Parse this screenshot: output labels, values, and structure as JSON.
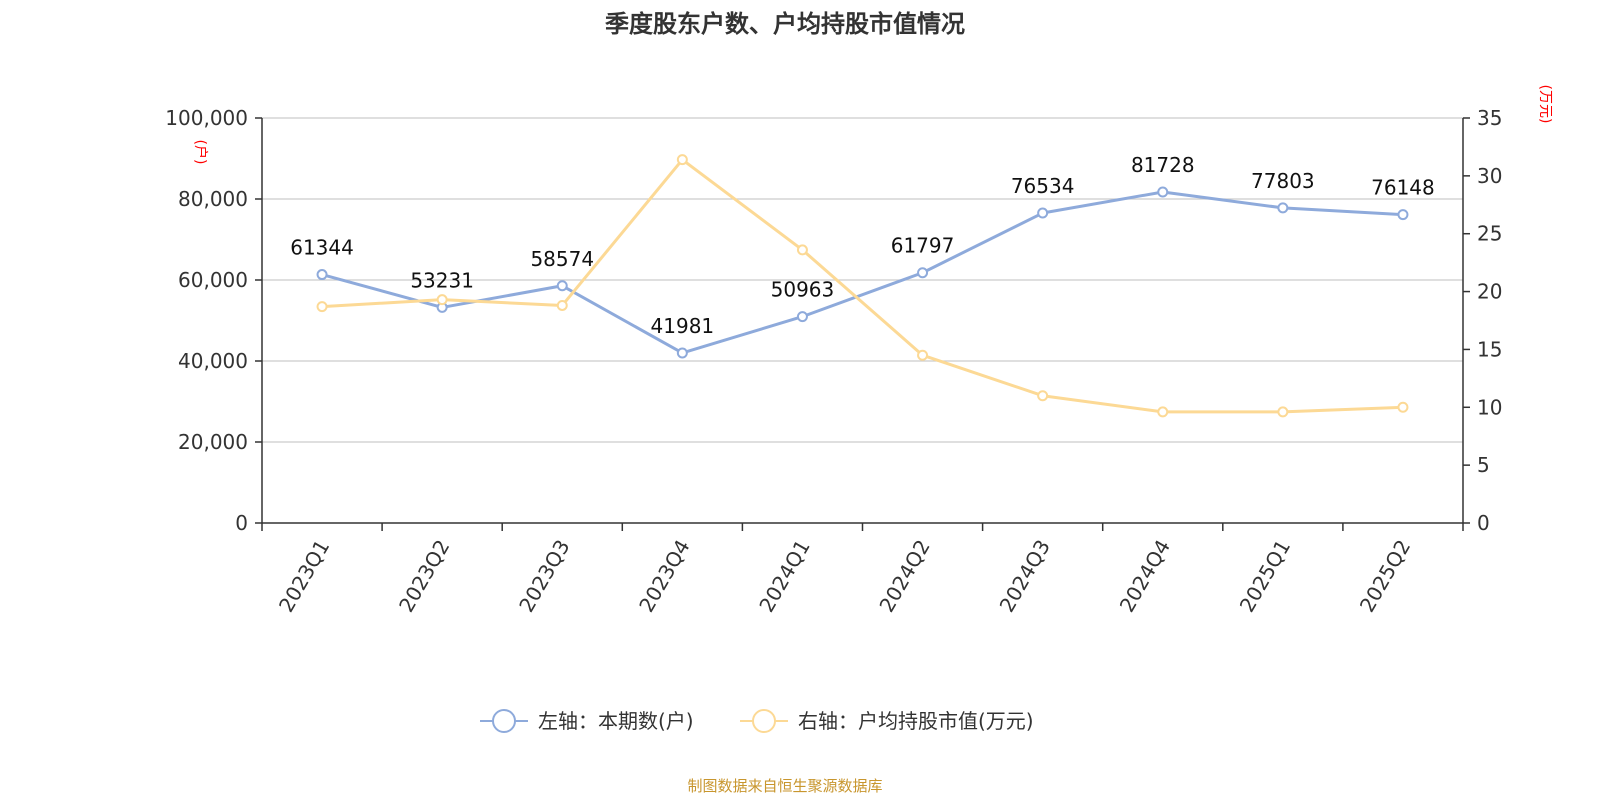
{
  "chart_data": {
    "type": "line",
    "title": "季度股东户数、户均持股市值情况",
    "categories": [
      "2023Q1",
      "2023Q2",
      "2023Q3",
      "2023Q4",
      "2024Q1",
      "2024Q2",
      "2024Q3",
      "2024Q4",
      "2025Q1",
      "2025Q2"
    ],
    "y_left": {
      "unit": "(户)",
      "ylim": [
        0,
        100000
      ],
      "ticks": [
        "0",
        "20,000",
        "40,000",
        "60,000",
        "80,000",
        "100,000"
      ],
      "tick_values": [
        0,
        20000,
        40000,
        60000,
        80000,
        100000
      ]
    },
    "y_right": {
      "unit": "(万元)",
      "ylim": [
        0,
        35
      ],
      "ticks": [
        "0",
        "5",
        "10",
        "15",
        "20",
        "25",
        "30",
        "35"
      ],
      "tick_values": [
        0,
        5,
        10,
        15,
        20,
        25,
        30,
        35
      ]
    },
    "series": [
      {
        "name": "左轴：本期数(户)",
        "axis": "left",
        "color": "#8eaadb",
        "values": [
          61344,
          53231,
          58574,
          41981,
          50963,
          61797,
          76534,
          81728,
          77803,
          76148
        ],
        "labels": [
          "61344",
          "53231",
          "58574",
          "41981",
          "50963",
          "61797",
          "76534",
          "81728",
          "77803",
          "76148"
        ]
      },
      {
        "name": "右轴：户均持股市值(万元)",
        "axis": "right",
        "color": "#fcd995",
        "values": [
          18.7,
          19.3,
          18.8,
          31.4,
          23.6,
          14.5,
          11.0,
          9.6,
          9.6,
          10.0
        ]
      }
    ],
    "grid": true,
    "legend_position": "bottom-center",
    "source": "制图数据来自恒生聚源数据库"
  }
}
